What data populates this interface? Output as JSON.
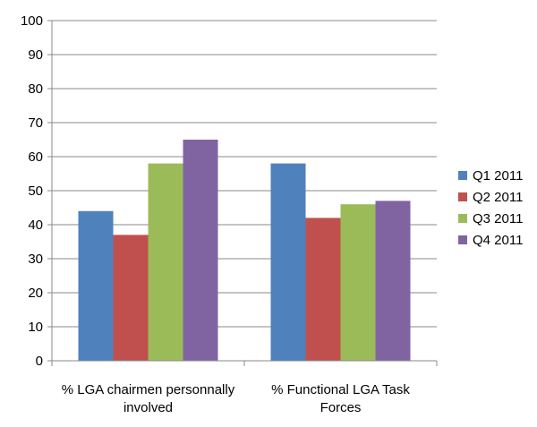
{
  "chart_data": {
    "type": "bar",
    "title": "",
    "xlabel": "",
    "ylabel": "",
    "categories": [
      [
        "% LGA chairmen personnally",
        "involved"
      ],
      [
        "% Functional LGA Task",
        "Forces"
      ]
    ],
    "series": [
      {
        "name": "Q1 2011",
        "color": "#4F81BD",
        "values": [
          44,
          58
        ]
      },
      {
        "name": "Q2 2011",
        "color": "#C0504D",
        "values": [
          37,
          42
        ]
      },
      {
        "name": "Q3 2011",
        "color": "#9BBB59",
        "values": [
          58,
          46
        ]
      },
      {
        "name": "Q4 2011",
        "color": "#8064A2",
        "values": [
          65,
          47
        ]
      }
    ],
    "ylim": [
      0,
      100
    ],
    "yticks": [
      0,
      10,
      20,
      30,
      40,
      50,
      60,
      70,
      80,
      90,
      100
    ],
    "grid": true,
    "gridline_color": "#888888",
    "legend_position": "right"
  }
}
